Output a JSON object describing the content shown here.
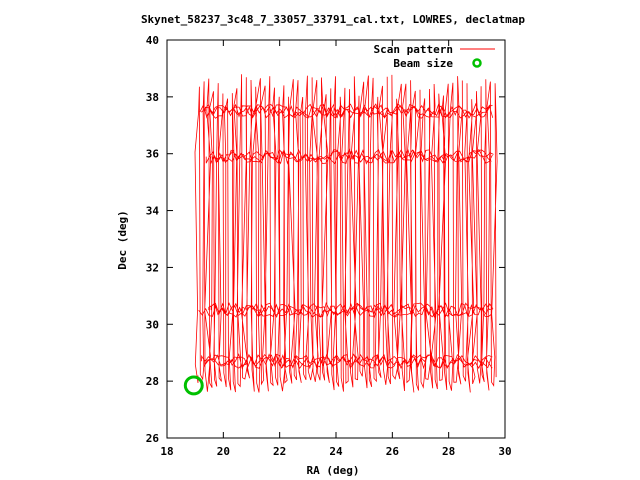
{
  "chart_data": {
    "type": "line",
    "title": "Skynet_58237_3c48_7_33057_33791_cal.txt, LOWRES, declatmap",
    "xlabel": "RA (deg)",
    "ylabel": "Dec (deg)",
    "xlim": [
      18,
      30
    ],
    "ylim": [
      26,
      40
    ],
    "x_ticks": [
      "18",
      "20",
      "22",
      "24",
      "26",
      "28",
      "30"
    ],
    "y_ticks": [
      "26",
      "28",
      "30",
      "32",
      "34",
      "36",
      "38",
      "40"
    ],
    "legend_position": "top-right",
    "series": [
      {
        "name": "Scan pattern",
        "color": "#ff0000",
        "style": "line",
        "ra_range": [
          19.1,
          29.6
        ],
        "dec_range": [
          27.6,
          38.8
        ],
        "dense_bands_dec": [
          28.7,
          30.5,
          35.9,
          37.5
        ]
      },
      {
        "name": "Beam size",
        "color": "#00c000",
        "style": "circle",
        "center": [
          18.95,
          27.85
        ],
        "radius_deg": 0.3
      }
    ]
  }
}
